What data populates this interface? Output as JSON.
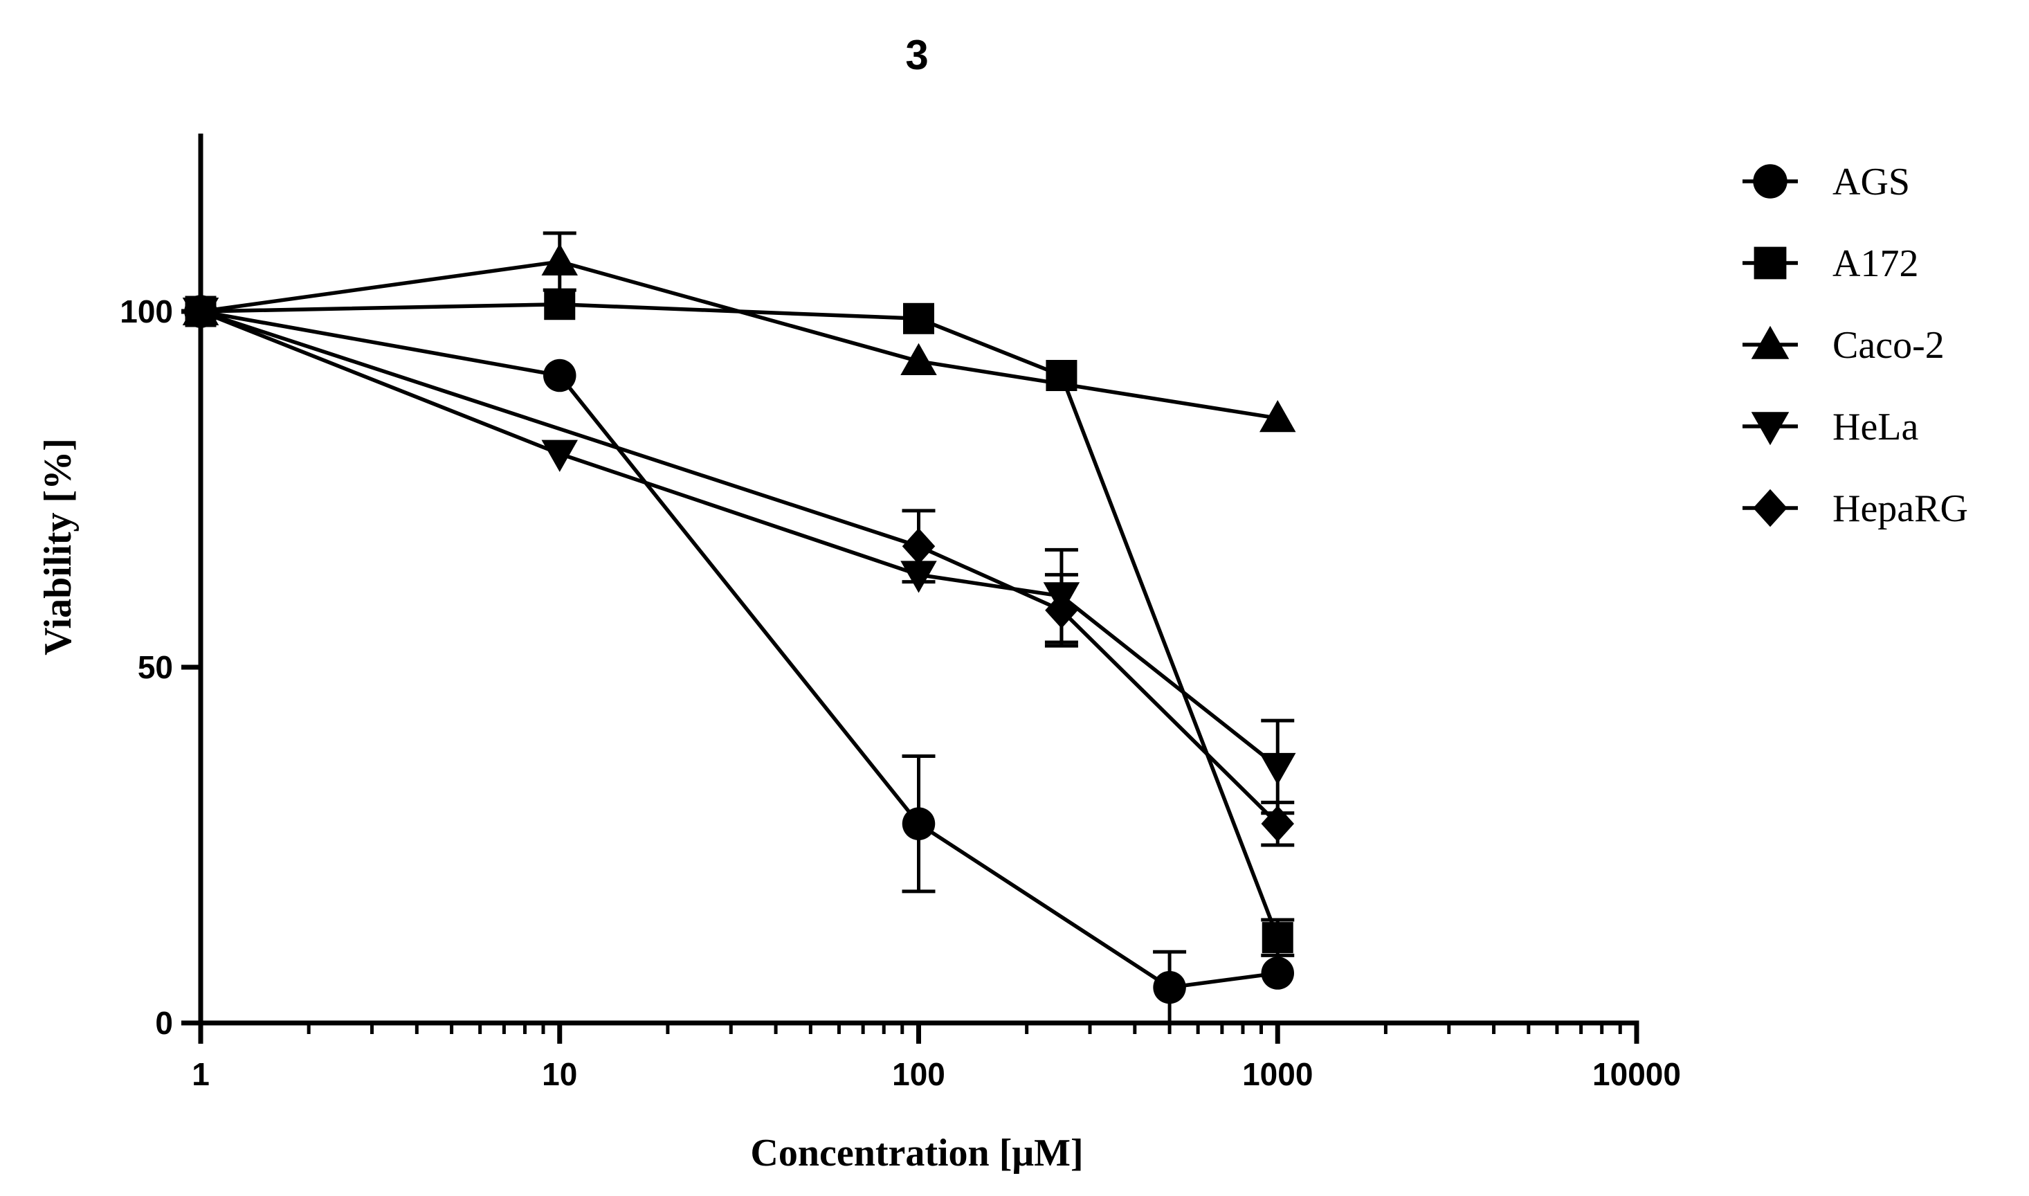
{
  "chart_data": {
    "type": "line",
    "title": "3",
    "xlabel": "Concentration [μM]",
    "ylabel": "Viability [%]",
    "xscale": "log",
    "xlim": [
      1,
      10000
    ],
    "ylim": [
      0,
      125
    ],
    "xticks": [
      1,
      10,
      100,
      1000,
      10000
    ],
    "xtick_labels": [
      "1",
      "10",
      "100",
      "1000",
      "10000"
    ],
    "yticks": [
      0,
      50,
      100
    ],
    "ytick_labels": [
      "0",
      "50",
      "100"
    ],
    "legend_position": "right",
    "series": [
      {
        "name": "AGS",
        "marker": "circle",
        "x": [
          1,
          10,
          100,
          500,
          1000
        ],
        "y": [
          100,
          91,
          28,
          5,
          7
        ],
        "err": [
          0,
          0,
          9.5,
          5,
          0
        ]
      },
      {
        "name": "A172",
        "marker": "square",
        "x": [
          1,
          10,
          100,
          250,
          1000
        ],
        "y": [
          100,
          101,
          99,
          91,
          12
        ],
        "err": [
          0,
          0,
          0,
          0,
          2.5
        ]
      },
      {
        "name": "Caco-2",
        "marker": "triangle-up",
        "x": [
          1,
          10,
          100,
          1000
        ],
        "y": [
          100,
          107,
          93,
          85
        ],
        "err": [
          0,
          4,
          0,
          0
        ]
      },
      {
        "name": "HeLa",
        "marker": "triangle-down",
        "x": [
          1,
          10,
          100,
          250,
          1000
        ],
        "y": [
          100,
          80,
          63,
          60,
          36
        ],
        "err": [
          0,
          0,
          0,
          6.5,
          6.5
        ]
      },
      {
        "name": "HepaRG",
        "marker": "diamond",
        "x": [
          1,
          100,
          250,
          1000
        ],
        "y": [
          100,
          67,
          58,
          28
        ],
        "err": [
          0,
          5,
          5,
          3
        ]
      }
    ]
  }
}
